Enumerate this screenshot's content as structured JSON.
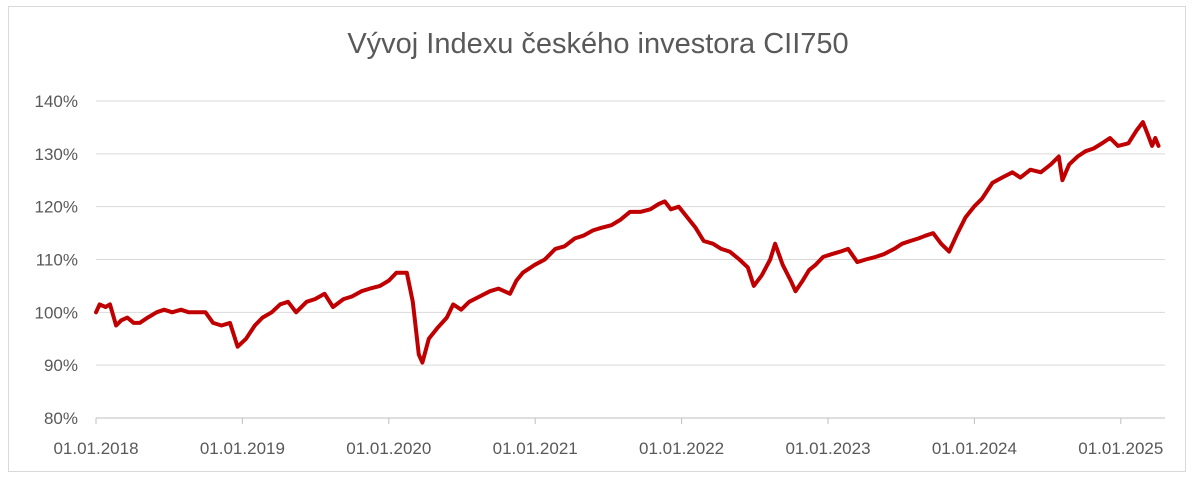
{
  "chart_data": {
    "type": "line",
    "title": "Vývoj Indexu českého investora CII750",
    "xlabel": "",
    "ylabel": "",
    "ylim": [
      0.8,
      1.4
    ],
    "y_ticks": [
      "80%",
      "90%",
      "100%",
      "110%",
      "120%",
      "130%",
      "140%"
    ],
    "x_ticks": [
      "01.01.2018",
      "01.01.2019",
      "01.01.2020",
      "01.01.2021",
      "01.01.2022",
      "01.01.2023",
      "01.01.2024",
      "01.01.2025"
    ],
    "grid": true,
    "line_color": "#c00000",
    "series": [
      {
        "values": [
          [
            "2018-01-01",
            1.0
          ],
          [
            "2018-01-10",
            1.015
          ],
          [
            "2018-01-25",
            1.01
          ],
          [
            "2018-02-05",
            1.015
          ],
          [
            "2018-02-20",
            0.975
          ],
          [
            "2018-03-05",
            0.985
          ],
          [
            "2018-03-20",
            0.99
          ],
          [
            "2018-04-05",
            0.98
          ],
          [
            "2018-04-20",
            0.98
          ],
          [
            "2018-05-10",
            0.99
          ],
          [
            "2018-06-01",
            1.0
          ],
          [
            "2018-06-20",
            1.005
          ],
          [
            "2018-07-10",
            1.0
          ],
          [
            "2018-08-01",
            1.005
          ],
          [
            "2018-08-20",
            1.0
          ],
          [
            "2018-09-10",
            1.0
          ],
          [
            "2018-10-01",
            1.0
          ],
          [
            "2018-10-20",
            0.98
          ],
          [
            "2018-11-10",
            0.975
          ],
          [
            "2018-12-01",
            0.98
          ],
          [
            "2018-12-20",
            0.935
          ],
          [
            "2019-01-10",
            0.95
          ],
          [
            "2019-02-01",
            0.975
          ],
          [
            "2019-02-20",
            0.99
          ],
          [
            "2019-03-15",
            1.0
          ],
          [
            "2019-04-05",
            1.015
          ],
          [
            "2019-04-25",
            1.02
          ],
          [
            "2019-05-15",
            1.0
          ],
          [
            "2019-06-10",
            1.02
          ],
          [
            "2019-07-01",
            1.025
          ],
          [
            "2019-07-25",
            1.035
          ],
          [
            "2019-08-15",
            1.01
          ],
          [
            "2019-09-10",
            1.025
          ],
          [
            "2019-10-01",
            1.03
          ],
          [
            "2019-10-25",
            1.04
          ],
          [
            "2019-11-15",
            1.045
          ],
          [
            "2019-12-10",
            1.05
          ],
          [
            "2020-01-01",
            1.06
          ],
          [
            "2020-01-20",
            1.075
          ],
          [
            "2020-02-15",
            1.075
          ],
          [
            "2020-03-01",
            1.02
          ],
          [
            "2020-03-16",
            0.92
          ],
          [
            "2020-03-25",
            0.905
          ],
          [
            "2020-04-10",
            0.95
          ],
          [
            "2020-05-01",
            0.97
          ],
          [
            "2020-05-25",
            0.99
          ],
          [
            "2020-06-10",
            1.015
          ],
          [
            "2020-06-30",
            1.005
          ],
          [
            "2020-07-20",
            1.02
          ],
          [
            "2020-08-15",
            1.03
          ],
          [
            "2020-09-10",
            1.04
          ],
          [
            "2020-10-01",
            1.045
          ],
          [
            "2020-10-30",
            1.035
          ],
          [
            "2020-11-15",
            1.06
          ],
          [
            "2020-12-01",
            1.075
          ],
          [
            "2020-12-31",
            1.09
          ],
          [
            "2021-01-25",
            1.1
          ],
          [
            "2021-02-20",
            1.12
          ],
          [
            "2021-03-15",
            1.125
          ],
          [
            "2021-04-10",
            1.14
          ],
          [
            "2021-05-01",
            1.145
          ],
          [
            "2021-05-25",
            1.155
          ],
          [
            "2021-06-15",
            1.16
          ],
          [
            "2021-07-10",
            1.165
          ],
          [
            "2021-08-01",
            1.175
          ],
          [
            "2021-08-25",
            1.19
          ],
          [
            "2021-09-20",
            1.19
          ],
          [
            "2021-10-15",
            1.195
          ],
          [
            "2021-11-05",
            1.205
          ],
          [
            "2021-11-20",
            1.21
          ],
          [
            "2021-12-05",
            1.195
          ],
          [
            "2021-12-25",
            1.2
          ],
          [
            "2022-01-15",
            1.18
          ],
          [
            "2022-02-05",
            1.16
          ],
          [
            "2022-02-25",
            1.135
          ],
          [
            "2022-03-20",
            1.13
          ],
          [
            "2022-04-10",
            1.12
          ],
          [
            "2022-05-01",
            1.115
          ],
          [
            "2022-05-25",
            1.1
          ],
          [
            "2022-06-15",
            1.085
          ],
          [
            "2022-06-30",
            1.05
          ],
          [
            "2022-07-20",
            1.07
          ],
          [
            "2022-08-10",
            1.1
          ],
          [
            "2022-08-22",
            1.13
          ],
          [
            "2022-09-10",
            1.09
          ],
          [
            "2022-09-30",
            1.06
          ],
          [
            "2022-10-12",
            1.04
          ],
          [
            "2022-10-30",
            1.06
          ],
          [
            "2022-11-15",
            1.08
          ],
          [
            "2022-12-01",
            1.09
          ],
          [
            "2022-12-20",
            1.105
          ],
          [
            "2023-01-10",
            1.11
          ],
          [
            "2023-02-01",
            1.115
          ],
          [
            "2023-02-20",
            1.12
          ],
          [
            "2023-03-15",
            1.095
          ],
          [
            "2023-04-05",
            1.1
          ],
          [
            "2023-04-30",
            1.105
          ],
          [
            "2023-05-20",
            1.11
          ],
          [
            "2023-06-15",
            1.12
          ],
          [
            "2023-07-05",
            1.13
          ],
          [
            "2023-07-25",
            1.135
          ],
          [
            "2023-08-15",
            1.14
          ],
          [
            "2023-09-01",
            1.145
          ],
          [
            "2023-09-20",
            1.15
          ],
          [
            "2023-10-10",
            1.13
          ],
          [
            "2023-10-30",
            1.115
          ],
          [
            "2023-11-20",
            1.15
          ],
          [
            "2023-12-10",
            1.18
          ],
          [
            "2023-12-31",
            1.2
          ],
          [
            "2024-01-20",
            1.215
          ],
          [
            "2024-02-15",
            1.245
          ],
          [
            "2024-03-10",
            1.255
          ],
          [
            "2024-04-05",
            1.265
          ],
          [
            "2024-04-25",
            1.255
          ],
          [
            "2024-05-20",
            1.27
          ],
          [
            "2024-06-15",
            1.265
          ],
          [
            "2024-07-10",
            1.28
          ],
          [
            "2024-07-30",
            1.295
          ],
          [
            "2024-08-08",
            1.25
          ],
          [
            "2024-08-25",
            1.28
          ],
          [
            "2024-09-15",
            1.295
          ],
          [
            "2024-10-05",
            1.305
          ],
          [
            "2024-10-25",
            1.31
          ],
          [
            "2024-11-15",
            1.32
          ],
          [
            "2024-12-05",
            1.33
          ],
          [
            "2024-12-25",
            1.315
          ],
          [
            "2025-01-20",
            1.32
          ],
          [
            "2025-02-10",
            1.345
          ],
          [
            "2025-02-25",
            1.36
          ],
          [
            "2025-03-10",
            1.335
          ],
          [
            "2025-03-20",
            1.315
          ],
          [
            "2025-03-28",
            1.33
          ],
          [
            "2025-04-05",
            1.315
          ]
        ]
      }
    ]
  }
}
